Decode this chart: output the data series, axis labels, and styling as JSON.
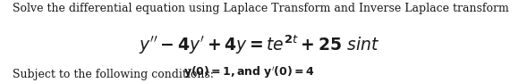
{
  "line1": "Solve the differential equation using Laplace Transform and Inverse Laplace transform",
  "line2_math": "$y'' - 4y' + 4y = te^{2t} + 25\\ sint$",
  "line3_prefix": "Subject to the following conditions: ",
  "line3_bold": "$\\mathbf{y(0) = 1, and\\ y'(0) = 4}$",
  "bg_color": "#ffffff",
  "text_color": "#1a1a1a",
  "font_size_line1": 9.0,
  "font_size_line2": 13.5,
  "font_size_line3": 9.0,
  "fig_width": 5.8,
  "fig_height": 0.93,
  "dpi": 100
}
